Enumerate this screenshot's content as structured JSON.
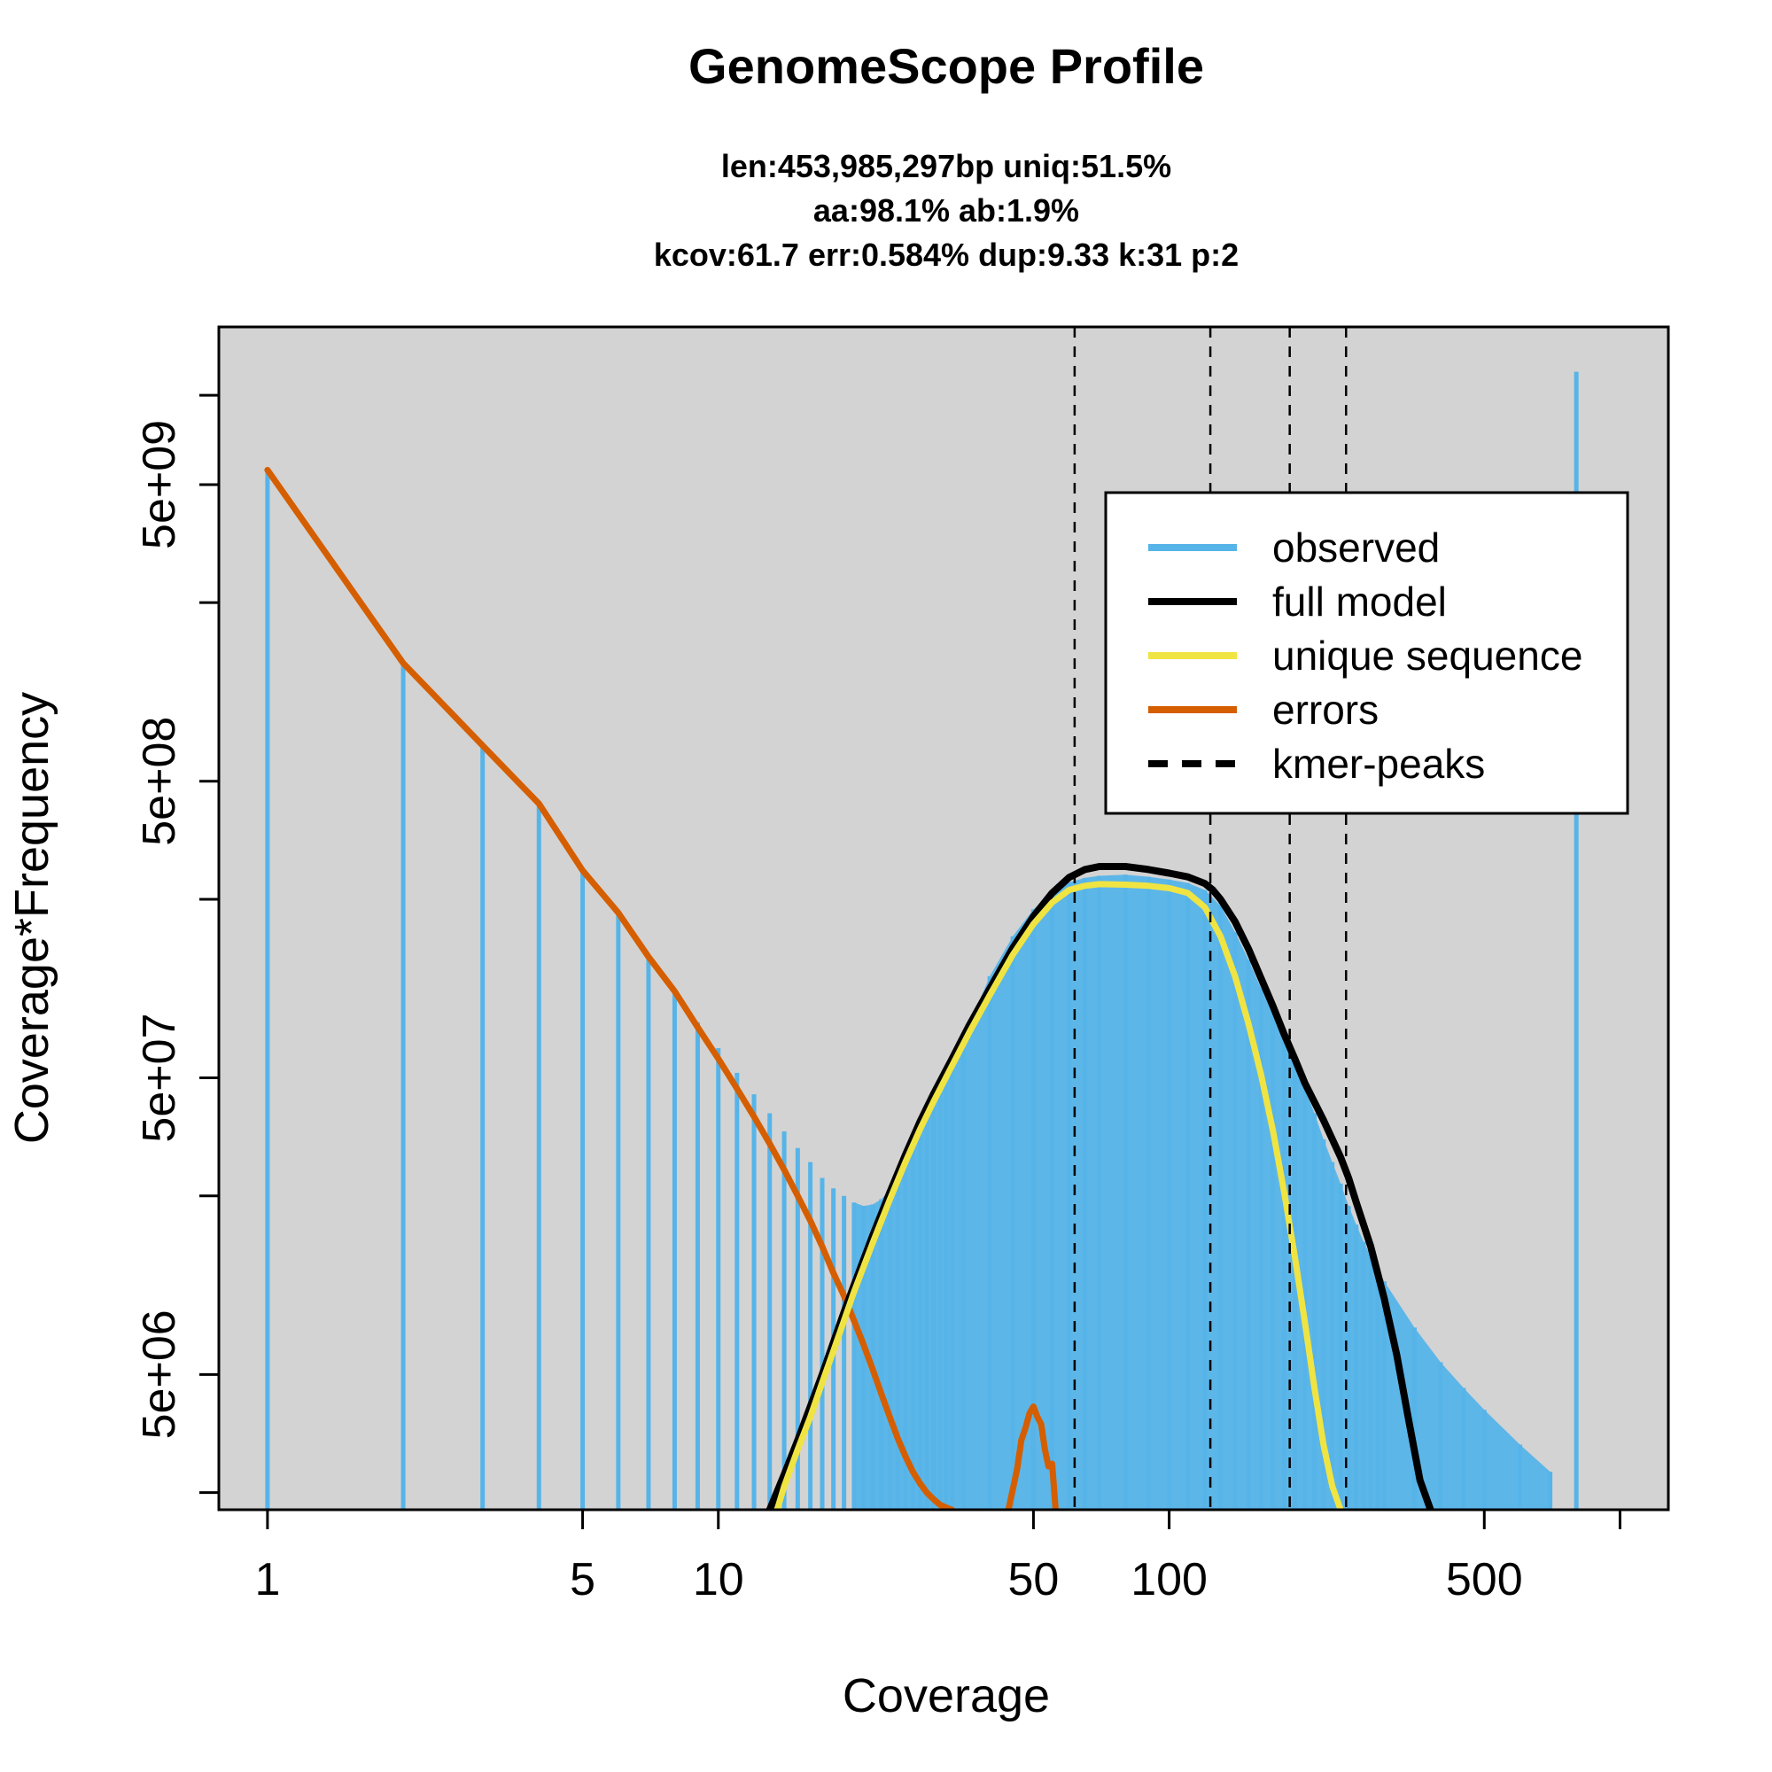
{
  "chart_data": {
    "type": "line",
    "title": "GenomeScope Profile",
    "subtitle_lines": [
      "len:453,985,297bp uniq:51.5%",
      "aa:98.1% ab:1.9%",
      "kcov:61.7 err:0.584%  dup:9.33  k:31 p:2"
    ],
    "xlabel": "Coverage",
    "ylabel": "Coverage*Frequency",
    "x_scale": "log",
    "y_scale": "log",
    "xlim": [
      0.78,
      1280
    ],
    "ylim": [
      1750000,
      17000000000
    ],
    "x_ticks": [
      1,
      5,
      10,
      50,
      100,
      500,
      1000
    ],
    "x_tick_labels": [
      "1",
      "5",
      "10",
      "50",
      "100",
      "500",
      ""
    ],
    "y_ticks": [
      2000000,
      5000000,
      20000000,
      50000000,
      200000000,
      500000000,
      2000000000,
      5000000000,
      10000000000
    ],
    "y_tick_labels": [
      "",
      "5e+06",
      "",
      "5e+07",
      "",
      "5e+08",
      "",
      "5e+09",
      ""
    ],
    "background_color": "#d3d3d3",
    "kmer_peaks": [
      61.7,
      123.4,
      185.1,
      246.8
    ],
    "series": [
      {
        "name": "observed",
        "style": "histogram-bars",
        "color": "#56b4e9",
        "x": [
          1,
          2,
          3,
          4,
          5,
          6,
          7,
          8,
          9,
          10,
          11,
          12,
          13,
          14,
          15,
          16,
          17,
          18,
          19,
          20,
          21,
          22,
          23,
          24,
          25,
          26,
          27,
          28,
          29,
          30,
          31,
          32,
          33,
          35,
          40,
          45,
          50,
          55,
          60,
          65,
          70,
          80,
          90,
          100,
          110,
          120,
          130,
          140,
          150,
          160,
          170,
          180,
          190,
          200,
          210,
          220,
          230,
          240,
          250,
          260,
          270,
          280,
          290,
          300,
          350,
          400,
          450,
          500,
          600,
          700,
          800,
          900,
          1000
        ],
        "y": [
          5600000000,
          1250000000,
          660000000,
          420000000,
          250000000,
          180000000,
          128000000,
          98000000,
          77000000,
          63000000,
          52000000,
          44000000,
          38000000,
          33000000,
          29000000,
          26000000,
          23000000,
          21200000,
          20000000,
          19000000,
          18500000,
          18700000,
          19500000,
          21000000,
          23000000,
          25500000,
          28500000,
          32000000,
          36000000,
          40000000,
          45000000,
          50000000,
          56000000,
          68000000,
          110000000,
          150000000,
          185000000,
          210000000,
          228000000,
          236000000,
          240000000,
          242000000,
          238000000,
          233000000,
          227000000,
          215000000,
          190000000,
          155000000,
          125000000,
          100000000,
          82000000,
          68000000,
          56000000,
          46000000,
          38000000,
          31000000,
          26000000,
          22000000,
          18500000,
          16000000,
          14000000,
          12500000,
          11300000,
          10300000,
          7200000,
          5500000,
          4500000,
          3800000,
          2900000,
          2350000,
          12000000000,
          0,
          0
        ]
      },
      {
        "name": "full model",
        "color": "#000000",
        "x": [
          13,
          14,
          15,
          16,
          17,
          18,
          19,
          20,
          22,
          24,
          26,
          28,
          30,
          33,
          36,
          40,
          45,
          50,
          55,
          60,
          65,
          70,
          80,
          90,
          100,
          110,
          120,
          125,
          130,
          140,
          150,
          160,
          170,
          180,
          190,
          200,
          220,
          240,
          250,
          260,
          280,
          300,
          320,
          340,
          360,
          380
        ],
        "y": [
          1750000,
          2300000,
          3000000,
          3900000,
          5000000,
          6400000,
          8100000,
          10000000,
          14700000,
          20500000,
          27500000,
          35500000,
          44000000,
          58000000,
          75000000,
          100000000,
          137000000,
          175000000,
          210000000,
          237000000,
          252000000,
          258000000,
          258000000,
          252000000,
          245000000,
          238000000,
          226000000,
          215000000,
          200000000,
          168000000,
          136000000,
          108000000,
          87000000,
          70000000,
          58000000,
          48000000,
          36000000,
          27000000,
          23000000,
          19000000,
          13500000,
          9000000,
          5800000,
          3500000,
          2200000,
          1750000
        ]
      },
      {
        "name": "unique sequence",
        "color": "#f0e442",
        "x": [
          13.5,
          14,
          15,
          16,
          17,
          18,
          19,
          20,
          22,
          24,
          26,
          28,
          30,
          33,
          36,
          40,
          45,
          50,
          55,
          60,
          65,
          70,
          80,
          90,
          100,
          110,
          120,
          130,
          140,
          150,
          160,
          170,
          180,
          190,
          200,
          210,
          220,
          230,
          240
        ],
        "y": [
          1750000,
          2100000,
          2800000,
          3600000,
          4700000,
          6000000,
          7600000,
          9500000,
          13900000,
          19400000,
          26000000,
          33500000,
          41500000,
          55000000,
          71000000,
          95000000,
          130000000,
          165000000,
          195000000,
          215000000,
          222000000,
          225000000,
          224000000,
          222000000,
          218000000,
          210000000,
          188000000,
          150000000,
          110000000,
          76000000,
          51000000,
          33000000,
          20500000,
          12500000,
          7500000,
          4500000,
          2900000,
          2100000,
          1750000
        ]
      },
      {
        "name": "errors",
        "color": "#d55e00",
        "x": [
          1,
          2,
          3,
          4,
          5,
          6,
          7,
          8,
          9,
          10,
          11,
          12,
          13,
          14,
          15,
          16,
          17,
          18,
          19,
          20,
          21,
          22,
          23,
          24,
          25,
          26,
          27,
          28,
          29,
          30,
          31,
          32,
          33
        ],
        "y": [
          5600000000,
          1250000000,
          660000000,
          420000000,
          250000000,
          180000000,
          128000000,
          98000000,
          74000000,
          58000000,
          46000000,
          37000000,
          30000000,
          24500000,
          20000000,
          16500000,
          13500000,
          11000000,
          9200000,
          7600000,
          6300000,
          5200000,
          4300000,
          3600000,
          3050000,
          2650000,
          2350000,
          2150000,
          2000000,
          1900000,
          1820000,
          1780000,
          1750000
        ]
      },
      {
        "name": "errors",
        "color": "#d55e00",
        "x": [
          44,
          46,
          47,
          48,
          49,
          50,
          51,
          52,
          53,
          54,
          55,
          56
        ],
        "y": [
          1750000,
          2400000,
          3000000,
          3300000,
          3700000,
          3900000,
          3600000,
          3400000,
          2800000,
          2450000,
          2500000,
          1750000
        ]
      }
    ],
    "legend": {
      "position": "top-right",
      "entries": [
        {
          "label": "observed",
          "color": "#56b4e9",
          "dash": false
        },
        {
          "label": "full model",
          "color": "#000000",
          "dash": false
        },
        {
          "label": "unique sequence",
          "color": "#f0e442",
          "dash": false
        },
        {
          "label": "errors",
          "color": "#d55e00",
          "dash": false
        },
        {
          "label": "kmer-peaks",
          "color": "#000000",
          "dash": true
        }
      ]
    }
  }
}
